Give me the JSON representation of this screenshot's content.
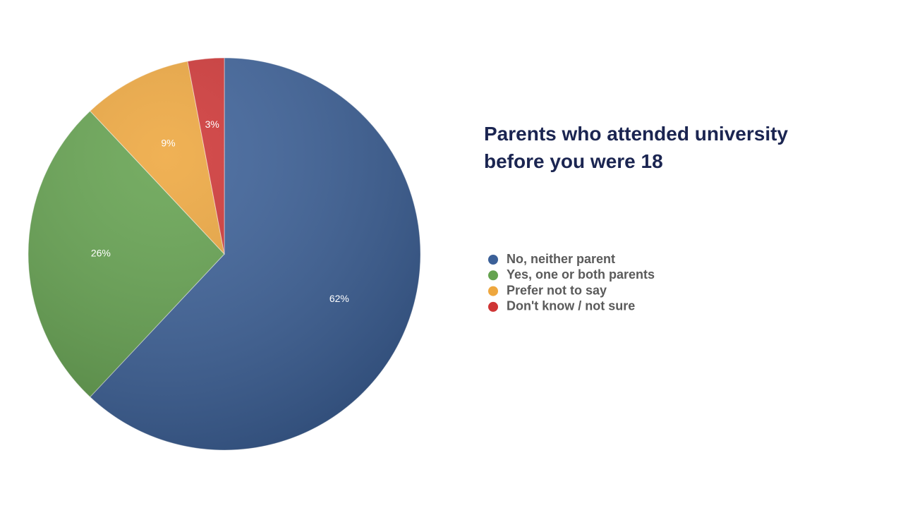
{
  "chart_data": {
    "type": "pie",
    "title": "Parents who attended university before you were 18",
    "categories": [
      "No, neither parent",
      "Yes, one or both parents",
      "Prefer not to say",
      "Don't know / not sure"
    ],
    "values": [
      62,
      26,
      9,
      3
    ],
    "value_labels": [
      "62%",
      "26%",
      "9%",
      "3%"
    ],
    "colors": [
      "#3b6098",
      "#64a24f",
      "#eea73e",
      "#cf3535"
    ],
    "legend": "right"
  }
}
